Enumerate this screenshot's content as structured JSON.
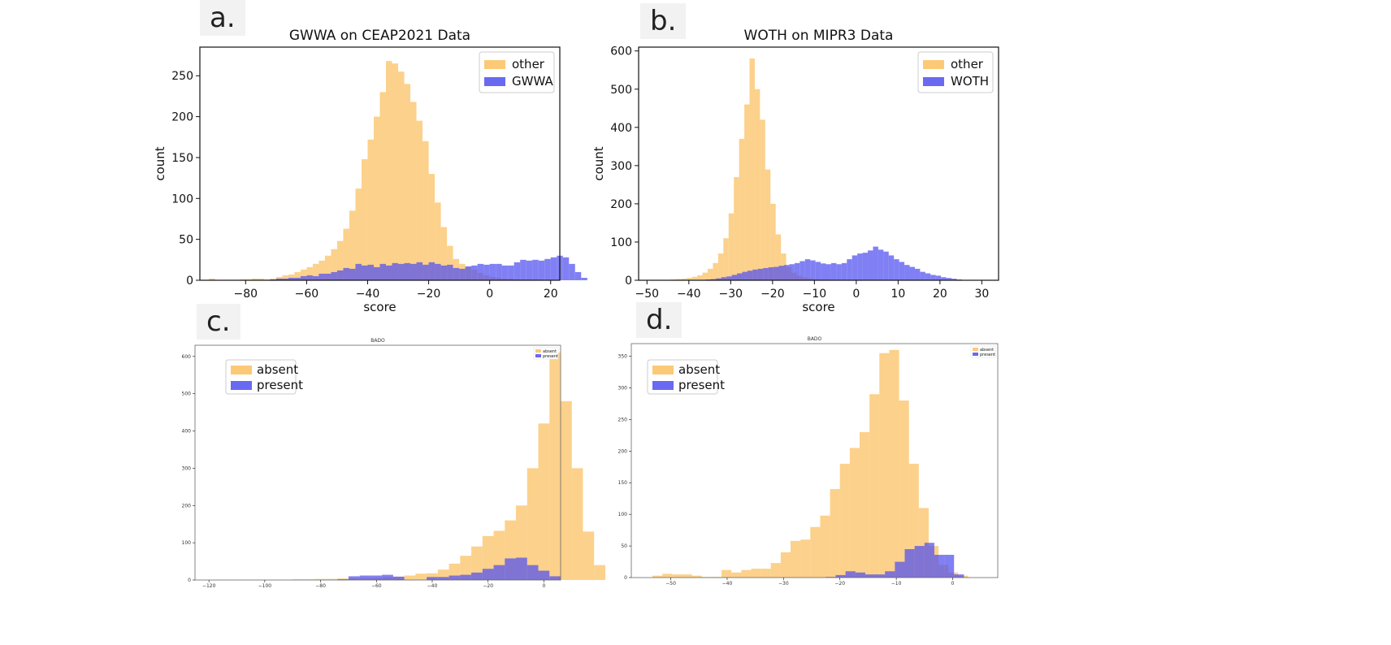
{
  "panel_labels": {
    "a": "a.",
    "b": "b.",
    "c": "c.",
    "d": "d."
  },
  "colors": {
    "other": "#fbbf5e",
    "target": "#4f4ff0"
  },
  "chart_data": [
    {
      "id": "a",
      "type": "histogram",
      "title": "GWWA on CEAP2021 Data",
      "xlabel": "score",
      "ylabel": "count",
      "xlim": [
        -95,
        23
      ],
      "ylim": [
        0,
        285
      ],
      "xticks": [
        -80,
        -60,
        -40,
        -20,
        0,
        20
      ],
      "yticks": [
        0,
        50,
        100,
        150,
        200,
        250
      ],
      "legend": {
        "position": "top-right",
        "size": "normal",
        "entries": [
          "other",
          "GWWA"
        ]
      },
      "series": [
        {
          "name": "other",
          "x_start": -92,
          "bin_width": 2,
          "values": [
            2,
            0,
            0,
            0,
            0,
            1,
            1,
            2,
            2,
            1,
            2,
            4,
            6,
            7,
            10,
            13,
            16,
            20,
            24,
            30,
            38,
            48,
            63,
            85,
            112,
            148,
            172,
            200,
            230,
            268,
            265,
            255,
            240,
            218,
            195,
            170,
            130,
            95,
            65,
            42,
            26,
            20,
            16,
            13,
            9,
            6,
            4,
            3,
            2,
            2,
            1,
            1,
            1,
            1,
            0,
            0,
            0
          ]
        },
        {
          "name": "GWWA",
          "x_start": -72,
          "bin_width": 2,
          "values": [
            1,
            2,
            2,
            3,
            3,
            5,
            6,
            5,
            8,
            8,
            10,
            12,
            15,
            14,
            20,
            18,
            19,
            16,
            20,
            18,
            21,
            20,
            21,
            20,
            22,
            19,
            22,
            20,
            18,
            19,
            15,
            14,
            17,
            18,
            20,
            19,
            20,
            20,
            18,
            18,
            22,
            25,
            24,
            25,
            24,
            26,
            28,
            30,
            28,
            20,
            10,
            3
          ]
        }
      ]
    },
    {
      "id": "b",
      "type": "histogram",
      "title": "WOTH on MIPR3 Data",
      "xlabel": "score",
      "ylabel": "count",
      "xlim": [
        -52,
        34
      ],
      "ylim": [
        0,
        610
      ],
      "xticks": [
        -50,
        -40,
        -30,
        -20,
        -10,
        0,
        10,
        20,
        30
      ],
      "yticks": [
        0,
        100,
        200,
        300,
        400,
        500,
        600
      ],
      "legend": {
        "position": "top-right",
        "size": "normal",
        "entries": [
          "other",
          "WOTH"
        ]
      },
      "series": [
        {
          "name": "other",
          "x_start": -48,
          "bin_width": 1.25,
          "values": [
            1,
            1,
            1,
            2,
            3,
            4,
            6,
            9,
            13,
            20,
            30,
            45,
            70,
            110,
            175,
            270,
            370,
            460,
            580,
            500,
            420,
            290,
            200,
            120,
            70,
            35,
            20,
            12,
            8,
            5,
            3,
            2,
            2,
            1,
            1,
            1
          ]
        },
        {
          "name": "WOTH",
          "x_start": -36,
          "bin_width": 1.25,
          "values": [
            2,
            3,
            5,
            8,
            10,
            14,
            18,
            22,
            25,
            28,
            30,
            32,
            34,
            35,
            38,
            40,
            42,
            45,
            50,
            55,
            52,
            48,
            44,
            42,
            45,
            42,
            45,
            55,
            65,
            70,
            72,
            78,
            88,
            80,
            75,
            65,
            55,
            48,
            40,
            35,
            30,
            22,
            18,
            14,
            12,
            8,
            6,
            4,
            2,
            1
          ]
        }
      ]
    },
    {
      "id": "c",
      "type": "histogram",
      "title": "BADO",
      "xlabel": "",
      "ylabel": "",
      "xlim": [
        -125,
        6
      ],
      "ylim": [
        0,
        630
      ],
      "xticks": [
        -120,
        -100,
        -80,
        -60,
        -40,
        -20,
        0
      ],
      "yticks": [
        0,
        100,
        200,
        300,
        400,
        500,
        600
      ],
      "legend": {
        "position": "top-right",
        "size": "tiny",
        "entries": [
          "absent",
          "present"
        ]
      },
      "overlay_legend": {
        "entries": [
          "absent",
          "present"
        ]
      },
      "series": [
        {
          "name": "absent",
          "x_start": -122,
          "bin_width": 4,
          "values": [
            0,
            0,
            0,
            1,
            1,
            1,
            1,
            1,
            2,
            2,
            3,
            3,
            4,
            5,
            6,
            6,
            8,
            9,
            12,
            17,
            18,
            28,
            44,
            65,
            90,
            118,
            132,
            160,
            200,
            300,
            420,
            610,
            480,
            300,
            130,
            40
          ]
        },
        {
          "name": "present",
          "x_start": -82,
          "bin_width": 4,
          "values": [
            0,
            0,
            2,
            10,
            12,
            12,
            14,
            9,
            0,
            0,
            8,
            8,
            12,
            14,
            20,
            30,
            40,
            58,
            60,
            40,
            25,
            10
          ]
        }
      ]
    },
    {
      "id": "d",
      "type": "histogram",
      "title": "BADO",
      "xlabel": "",
      "ylabel": "",
      "xlim": [
        -57,
        8
      ],
      "ylim": [
        0,
        370
      ],
      "xticks": [
        -50,
        -40,
        -30,
        -20,
        -10,
        0
      ],
      "yticks": [
        0,
        50,
        100,
        150,
        200,
        250,
        300,
        350
      ],
      "legend": {
        "position": "top-right",
        "size": "tiny",
        "entries": [
          "absent",
          "present"
        ]
      },
      "overlay_legend": {
        "entries": [
          "absent",
          "present"
        ]
      },
      "series": [
        {
          "name": "absent",
          "x_start": -55,
          "bin_width": 1.75,
          "values": [
            0,
            3,
            6,
            5,
            5,
            3,
            1,
            1,
            12,
            8,
            12,
            14,
            14,
            23,
            40,
            58,
            60,
            80,
            98,
            140,
            180,
            205,
            230,
            290,
            355,
            360,
            280,
            180,
            110,
            50,
            20,
            8,
            3
          ]
        },
        {
          "name": "present",
          "x_start": -22.5,
          "bin_width": 1.75,
          "values": [
            1,
            4,
            10,
            8,
            5,
            5,
            10,
            25,
            45,
            50,
            55,
            36,
            36,
            5,
            0
          ]
        }
      ]
    }
  ]
}
